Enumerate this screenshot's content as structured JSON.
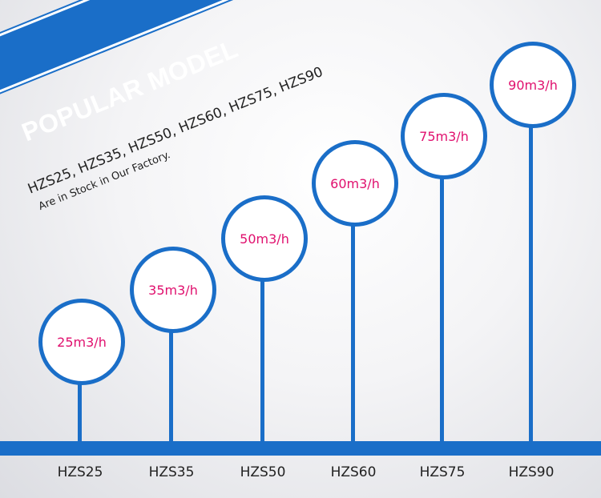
{
  "banner": {
    "title": "POPULAR MODEL",
    "models": "HZS25, HZS35, HZS50, HZS60, HZS75, HZS90",
    "stock_note": "Are in Stock in Our Factory."
  },
  "colors": {
    "accent": "#1a6ec8",
    "capacity_text": "#e0106e"
  },
  "items": [
    {
      "model": "HZS25",
      "capacity": "25m3/h"
    },
    {
      "model": "HZS35",
      "capacity": "35m3/h"
    },
    {
      "model": "HZS50",
      "capacity": "50m3/h"
    },
    {
      "model": "HZS60",
      "capacity": "60m3/h"
    },
    {
      "model": "HZS75",
      "capacity": "75m3/h"
    },
    {
      "model": "HZS90",
      "capacity": "90m3/h"
    }
  ]
}
